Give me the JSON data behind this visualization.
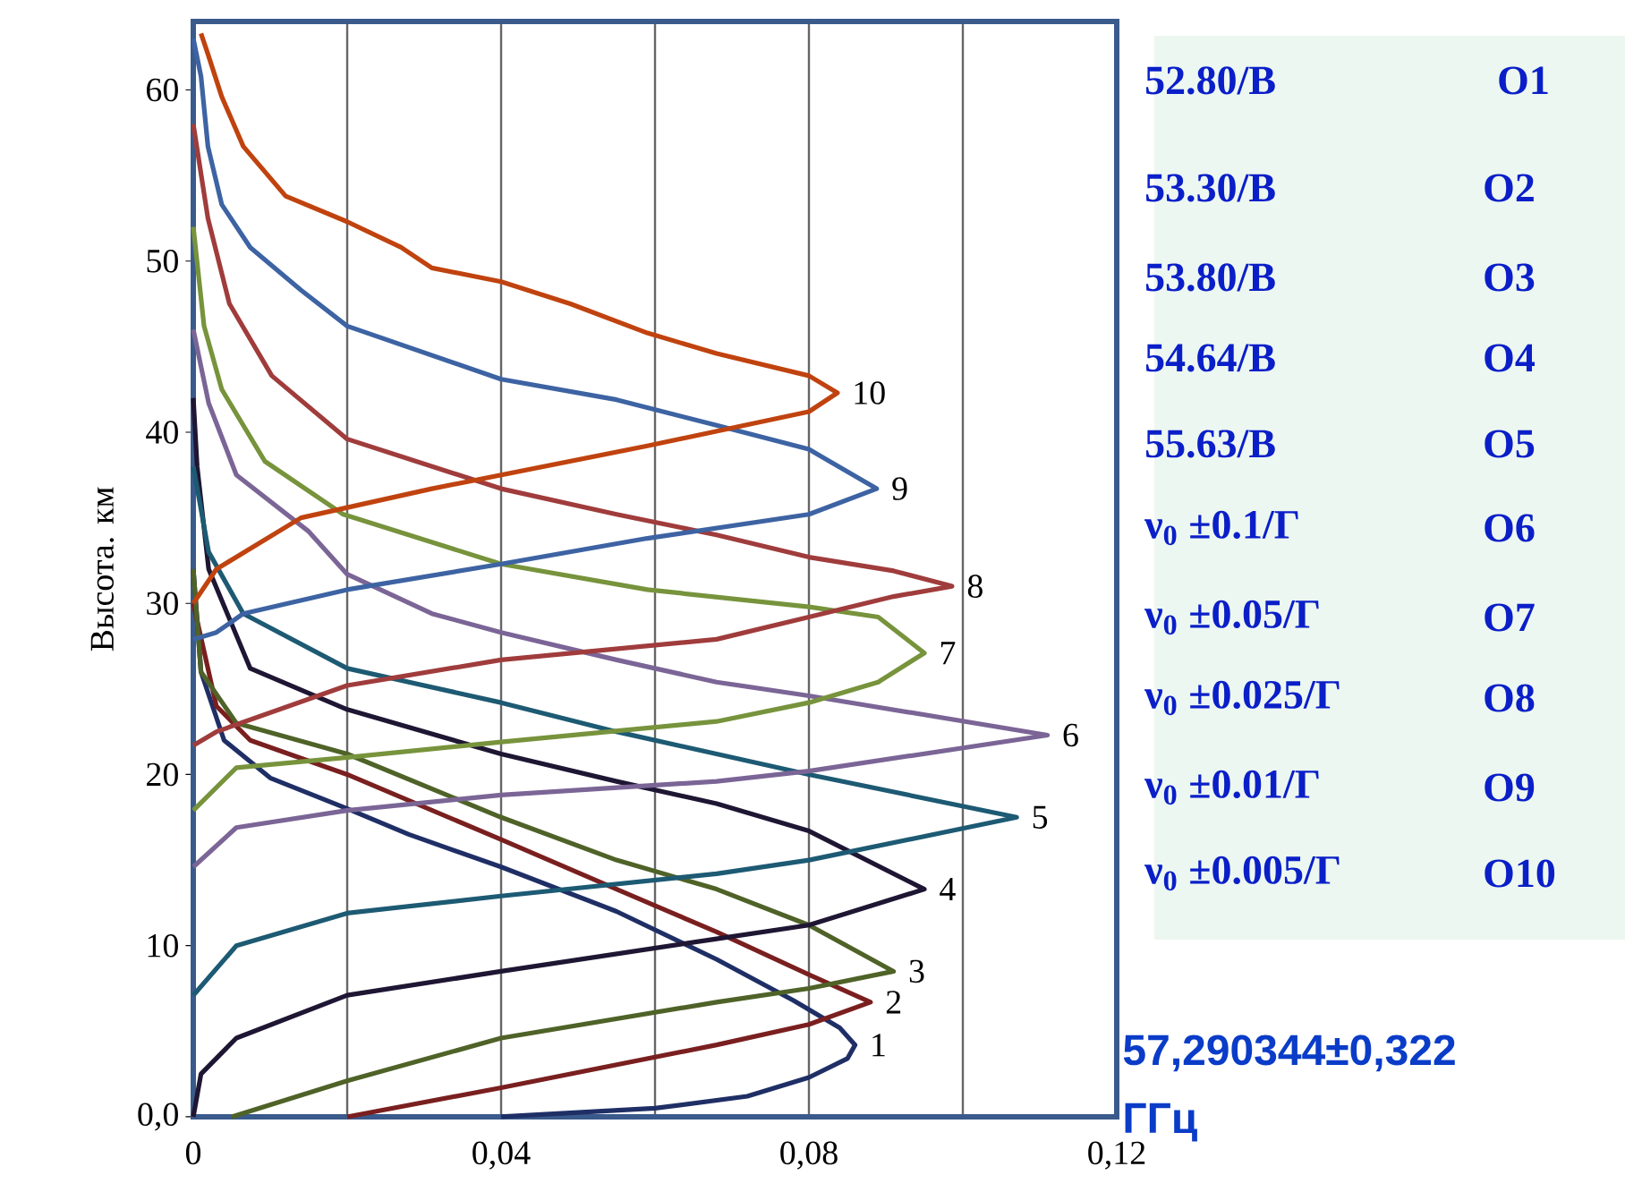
{
  "chart_data": {
    "type": "line",
    "ylabel": "Высота. км",
    "xlim": [
      0,
      0.12
    ],
    "ylim": [
      0,
      64
    ],
    "xticks": [
      0,
      {
        "value": 0.02,
        "label": null
      },
      {
        "value": 0.04,
        "label": "0,04"
      },
      {
        "value": 0.06,
        "label": null
      },
      {
        "value": 0.08,
        "label": "0,08"
      },
      {
        "value": 0.1,
        "label": null
      },
      {
        "value": 0.12,
        "label": "0,12"
      }
    ],
    "yticks": [
      {
        "value": 0,
        "label": "0,0"
      },
      10,
      20,
      30,
      40,
      50,
      60
    ],
    "grid": "x",
    "series": [
      {
        "name": "1",
        "color": "#1f2f66",
        "x": [
          0.04,
          0.06,
          0.072,
          0.08,
          0.085,
          0.086,
          0.084,
          0.078,
          0.068,
          0.055,
          0.04,
          0.028,
          0.02,
          0.01,
          0.004,
          0.001,
          0
        ],
        "values": [
          0,
          0.5,
          1.2,
          2.3,
          3.4,
          4.2,
          5.2,
          6.8,
          9.2,
          12,
          14.6,
          16.5,
          18,
          19.8,
          22,
          26,
          32
        ]
      },
      {
        "name": "2",
        "color": "#7a1f1f",
        "x": [
          0.02,
          0.04,
          0.068,
          0.08,
          0.088,
          0.08,
          0.068,
          0.055,
          0.04,
          0.02,
          0.0074,
          0.003,
          0
        ],
        "values": [
          0,
          1.7,
          4.2,
          5.4,
          6.7,
          8.3,
          10.8,
          13.3,
          16.2,
          20,
          22,
          24,
          30
        ]
      },
      {
        "name": "3",
        "color": "#4f6228",
        "x": [
          0.005,
          0.02,
          0.04,
          0.068,
          0.08,
          0.091,
          0.08,
          0.068,
          0.055,
          0.04,
          0.02,
          0.0056,
          0.001,
          0
        ],
        "values": [
          0,
          2.1,
          4.6,
          6.7,
          7.5,
          8.5,
          11.2,
          13.3,
          15,
          17.5,
          21.2,
          23,
          26,
          32
        ]
      },
      {
        "name": "4",
        "color": "#1e1633",
        "x": [
          0,
          0.001,
          0.0056,
          0.02,
          0.04,
          0.068,
          0.08,
          0.095,
          0.08,
          0.068,
          0.055,
          0.04,
          0.02,
          0.0074,
          0.002,
          0.0005,
          0
        ],
        "values": [
          0,
          2.5,
          4.6,
          7.1,
          8.5,
          10.4,
          11.2,
          13.3,
          16.7,
          18.3,
          19.6,
          21.2,
          23.8,
          26.2,
          32,
          38,
          42
        ]
      },
      {
        "name": "5",
        "color": "#1d5a73",
        "x": [
          0,
          0.0056,
          0.02,
          0.04,
          0.068,
          0.08,
          0.107,
          0.08,
          0.068,
          0.055,
          0.04,
          0.02,
          0.0065,
          0.002,
          0
        ],
        "values": [
          7.1,
          10,
          11.9,
          12.9,
          14.2,
          15,
          17.5,
          20,
          21.2,
          22.5,
          24.2,
          26.2,
          29.4,
          33,
          38
        ]
      },
      {
        "name": "6",
        "color": "#7b6596",
        "x": [
          0,
          0.0056,
          0.02,
          0.04,
          0.068,
          0.08,
          0.111,
          0.08,
          0.068,
          0.055,
          0.04,
          0.031,
          0.02,
          0.015,
          0.0056,
          0.002,
          0
        ],
        "values": [
          14.6,
          16.9,
          17.9,
          18.8,
          19.6,
          20.2,
          22.3,
          24.6,
          25.4,
          26.7,
          28.3,
          29.4,
          31.7,
          34.2,
          37.5,
          41.7,
          46
        ]
      },
      {
        "name": "7",
        "color": "#77933c",
        "x": [
          0,
          0.0056,
          0.02,
          0.04,
          0.068,
          0.08,
          0.089,
          0.095,
          0.089,
          0.08,
          0.059,
          0.04,
          0.0195,
          0.0093,
          0.0037,
          0.0014,
          0
        ],
        "values": [
          17.9,
          20.4,
          21,
          21.9,
          23.1,
          24.2,
          25.4,
          27.1,
          29.2,
          29.8,
          30.8,
          32.3,
          35.2,
          38.3,
          42.5,
          46.2,
          52
        ]
      },
      {
        "name": "8",
        "color": "#a03c3c",
        "x": [
          0,
          0.003,
          0.02,
          0.04,
          0.068,
          0.08,
          0.091,
          0.0986,
          0.091,
          0.08,
          0.068,
          0.055,
          0.04,
          0.02,
          0.0102,
          0.0047,
          0.0019,
          0
        ],
        "values": [
          21.7,
          22.5,
          25.2,
          26.7,
          27.9,
          29.2,
          30.4,
          31,
          31.9,
          32.7,
          34,
          35.2,
          36.7,
          39.6,
          43.3,
          47.5,
          52.5,
          58
        ]
      },
      {
        "name": "9",
        "color": "#3d63a3",
        "x": [
          0,
          0.003,
          0.0065,
          0.02,
          0.04,
          0.059,
          0.08,
          0.0888,
          0.08,
          0.068,
          0.055,
          0.04,
          0.02,
          0.014,
          0.0074,
          0.0037,
          0.0019,
          0.001,
          0
        ],
        "values": [
          27.9,
          28.3,
          29.4,
          30.8,
          32.3,
          33.8,
          35.2,
          36.7,
          39,
          40.4,
          41.9,
          43.1,
          46.2,
          48.3,
          50.8,
          53.3,
          56.7,
          60.8,
          63
        ]
      },
      {
        "name": "10",
        "color": "#c0430f",
        "x": [
          0,
          0.003,
          0.014,
          0.031,
          0.059,
          0.08,
          0.0837,
          0.08,
          0.068,
          0.059,
          0.049,
          0.04,
          0.031,
          0.027,
          0.02,
          0.012,
          0.0065,
          0.0037,
          0.0019,
          0.001
        ],
        "values": [
          30,
          32,
          35,
          36.7,
          39.2,
          41.2,
          42.3,
          43.3,
          44.6,
          45.8,
          47.5,
          48.8,
          49.6,
          50.8,
          52.3,
          53.8,
          56.7,
          59.6,
          62.1,
          63.3
        ]
      }
    ],
    "annotations": [
      "52.80/В",
      "53.30/В",
      "53.80/В",
      "54.64/В",
      "55.63/В",
      "ν$_{0}$ ±0.1/Г",
      "ν$_{0}$ ±0.05/Г",
      "ν$_{0}$ ±0.025/Г",
      "ν$_{0}$ ±0.01/Г",
      "ν$_{0}$ ±0.005/Г",
      "O1",
      "O2",
      "O3",
      "O4",
      "O5",
      "O6",
      "O7",
      "O8",
      "O9",
      "O10",
      "57,290344±0,322 ГГц"
    ]
  }
}
